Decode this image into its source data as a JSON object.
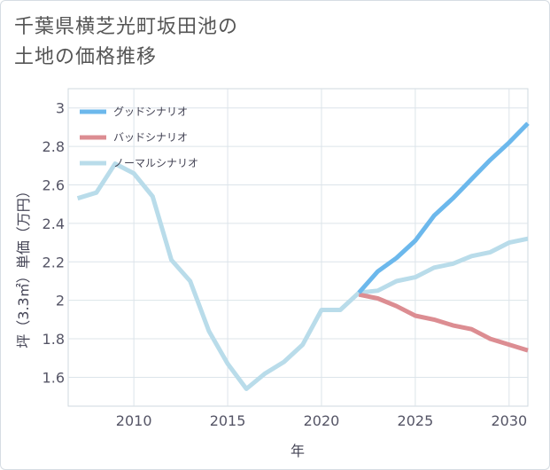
{
  "title": {
    "line1": "千葉県横芝光町坂田池の",
    "line2": "土地の価格推移"
  },
  "chart_data": {
    "type": "line",
    "xlabel": "年",
    "ylabel": "坪（3.3㎡）単価（万円）",
    "xlim": [
      2006.5,
      2031
    ],
    "ylim": [
      1.45,
      3.1
    ],
    "xticks": [
      2010,
      2015,
      2020,
      2025,
      2030
    ],
    "yticks": [
      1.6,
      1.8,
      2,
      2.2,
      2.4,
      2.6,
      2.8,
      3
    ],
    "grid": true,
    "legend_position": "top-left",
    "series": [
      {
        "name": "グッドシナリオ",
        "color": "#6cb8ec",
        "x": [
          2022,
          2023,
          2024,
          2025,
          2026,
          2027,
          2028,
          2029,
          2030,
          2031
        ],
        "y": [
          2.04,
          2.15,
          2.22,
          2.31,
          2.44,
          2.53,
          2.63,
          2.73,
          2.82,
          2.92
        ]
      },
      {
        "name": "バッドシナリオ",
        "color": "#dc8d92",
        "x": [
          2022,
          2023,
          2024,
          2025,
          2026,
          2027,
          2028,
          2029,
          2030,
          2031
        ],
        "y": [
          2.03,
          2.01,
          1.97,
          1.92,
          1.9,
          1.87,
          1.85,
          1.8,
          1.77,
          1.74
        ]
      },
      {
        "name": "ノーマルシナリオ",
        "color": "#b9dcea",
        "x": [
          2007,
          2008,
          2009,
          2010,
          2011,
          2012,
          2013,
          2014,
          2015,
          2016,
          2017,
          2018,
          2019,
          2020,
          2021,
          2022,
          2023,
          2024,
          2025,
          2026,
          2027,
          2028,
          2029,
          2030,
          2031
        ],
        "y": [
          2.53,
          2.56,
          2.71,
          2.66,
          2.54,
          2.21,
          2.1,
          1.84,
          1.67,
          1.54,
          1.62,
          1.68,
          1.77,
          1.95,
          1.95,
          2.04,
          2.05,
          2.1,
          2.12,
          2.17,
          2.19,
          2.23,
          2.25,
          2.3,
          2.32
        ]
      }
    ]
  }
}
